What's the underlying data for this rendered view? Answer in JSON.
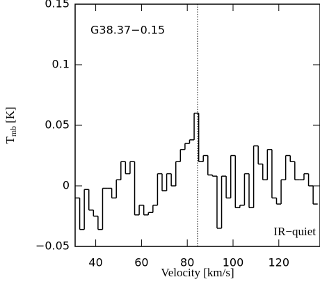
{
  "chart_data": {
    "type": "step",
    "ylabel": "T",
    "ylabel_sub": "mb",
    "ylabel_unit": "[K]",
    "xlabel": "Velocity [km/s]",
    "annotations": [
      "G38.37−0.15",
      "IR−quiet"
    ],
    "vline": 84.5,
    "color": "#000000",
    "xlim": [
      31,
      138
    ],
    "ylim": [
      -0.05,
      0.15
    ],
    "xticks": [
      40,
      60,
      80,
      100,
      120
    ],
    "yticks": [
      {
        "value": -0.05,
        "label": "−0.05"
      },
      0,
      0.05,
      0.1,
      0.15
    ],
    "x": [
      32,
      34,
      36,
      38,
      40,
      42,
      44,
      46,
      48,
      50,
      52,
      54,
      56,
      58,
      60,
      62,
      64,
      66,
      68,
      70,
      72,
      74,
      76,
      78,
      80,
      82,
      84,
      86,
      88,
      90,
      92,
      94,
      96,
      98,
      100,
      102,
      104,
      106,
      108,
      110,
      112,
      114,
      116,
      118,
      120,
      122,
      124,
      126,
      128,
      130,
      132,
      134,
      136
    ],
    "values": [
      -0.01,
      -0.036,
      -0.003,
      -0.02,
      -0.025,
      -0.036,
      -0.002,
      -0.002,
      -0.01,
      0.005,
      0.02,
      0.01,
      0.02,
      -0.024,
      -0.016,
      -0.024,
      -0.022,
      -0.016,
      0.01,
      -0.004,
      0.01,
      0.0,
      0.02,
      0.03,
      0.035,
      0.038,
      0.06,
      0.02,
      0.025,
      0.009,
      0.008,
      -0.035,
      0.008,
      -0.01,
      0.025,
      -0.018,
      -0.016,
      0.01,
      -0.018,
      0.033,
      0.018,
      0.005,
      0.03,
      -0.01,
      -0.015,
      0.005,
      0.025,
      0.02,
      0.005,
      0.005,
      0.01,
      0.0,
      -0.015
    ]
  }
}
